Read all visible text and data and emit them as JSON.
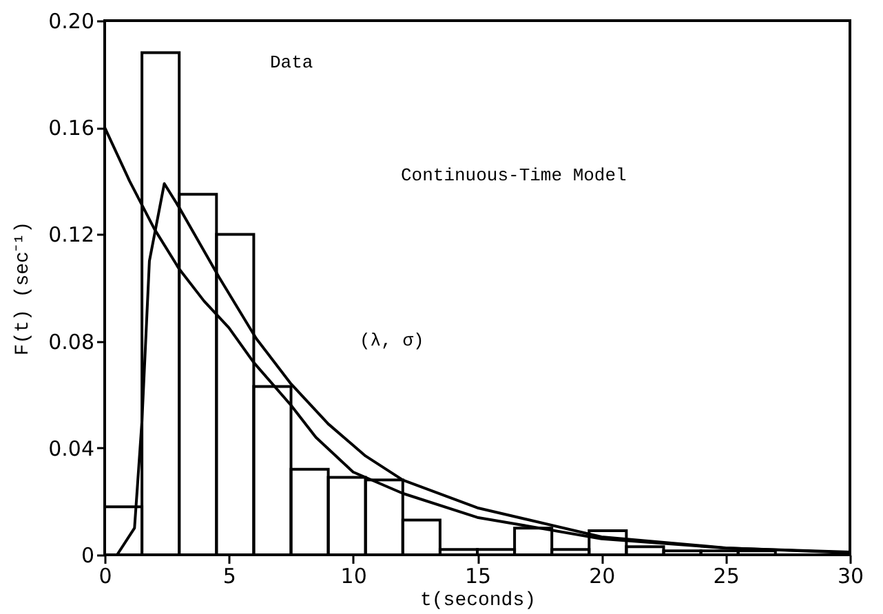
{
  "chart_data": {
    "type": "histogram",
    "xlabel": "t(seconds)",
    "ylabel": "F(t)  (sec⁻¹)",
    "bins": [
      0,
      1.5,
      3,
      4.5,
      6,
      7.5,
      9,
      10.5,
      12,
      13.5,
      15,
      16.5,
      18,
      19.5,
      21,
      22.5,
      24,
      25.5,
      27
    ],
    "values": [
      0.018,
      0.188,
      0.135,
      0.12,
      0.063,
      0.032,
      0.029,
      0.028,
      0.013,
      0.002,
      0.002,
      0.01,
      0.002,
      0.009,
      0.003,
      0.0015,
      0.0015,
      0.0015
    ],
    "color": "#000000",
    "series": [
      {
        "type": "line",
        "color": "#000000",
        "x": [
          0,
          1,
          2,
          3,
          4,
          5,
          6,
          7.5,
          8.5,
          10,
          12,
          15,
          20,
          25,
          30
        ],
        "values": [
          0.16,
          0.14,
          0.122,
          0.107,
          0.095,
          0.085,
          0.072,
          0.056,
          0.044,
          0.031,
          0.023,
          0.014,
          0.006,
          0.0025,
          0.001
        ]
      },
      {
        "type": "line",
        "color": "#000000",
        "x": [
          0.5,
          1.2,
          1.5,
          1.8,
          2.4,
          3,
          4.6,
          6.1,
          7.5,
          9,
          10.5,
          12,
          15,
          20,
          25,
          30
        ],
        "values": [
          0,
          0.01,
          0.05,
          0.11,
          0.139,
          0.13,
          0.104,
          0.081,
          0.064,
          0.049,
          0.037,
          0.028,
          0.0176,
          0.0067,
          0.0026,
          0.0008
        ]
      }
    ],
    "annotations": [
      "Data",
      "Continuous-Time Model",
      "(λ, σ)"
    ],
    "xlim": [
      0,
      30
    ],
    "xticks": [
      0,
      5,
      10,
      15,
      20,
      25,
      30
    ],
    "ylim": [
      0,
      0.2
    ],
    "yticks": [
      {
        "value": 0,
        "label": "0"
      },
      0.04,
      0.08,
      0.12,
      0.16,
      {
        "value": 0.2,
        "label": "0.20"
      }
    ],
    "grid": false,
    "line_style": "solid",
    "marker": "none"
  }
}
